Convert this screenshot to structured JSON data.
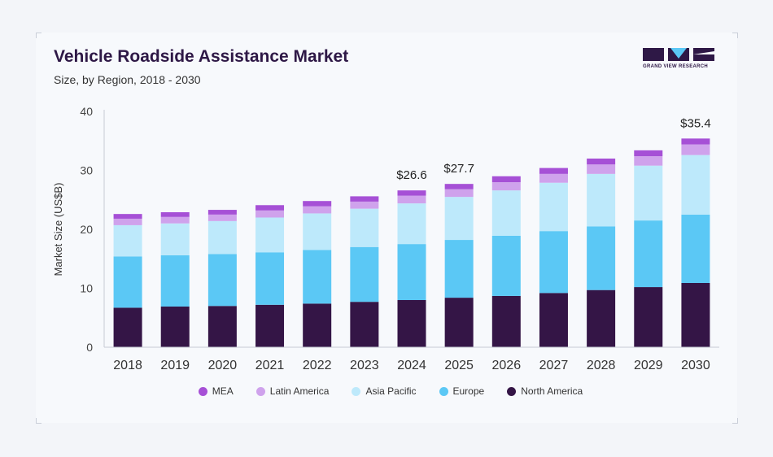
{
  "header": {
    "title": "Vehicle Roadside Assistance Market",
    "subtitle": "Size, by Region, 2018 - 2030"
  },
  "brand": {
    "logo_text": "GRAND VIEW RESEARCH",
    "color": "#2e1846",
    "accent": "#5bc8f5"
  },
  "chart_data": {
    "type": "bar",
    "stacked": true,
    "categories": [
      "2018",
      "2019",
      "2020",
      "2021",
      "2022",
      "2023",
      "2024",
      "2025",
      "2026",
      "2027",
      "2028",
      "2029",
      "2030"
    ],
    "series": [
      {
        "name": "North America",
        "color": "#341546",
        "values": [
          6.7,
          6.9,
          7.0,
          7.2,
          7.4,
          7.7,
          8.0,
          8.4,
          8.7,
          9.2,
          9.7,
          10.2,
          10.9
        ]
      },
      {
        "name": "Europe",
        "color": "#5bc8f5",
        "values": [
          8.7,
          8.7,
          8.8,
          8.9,
          9.1,
          9.3,
          9.5,
          9.8,
          10.2,
          10.5,
          10.8,
          11.3,
          11.6
        ]
      },
      {
        "name": "Asia Pacific",
        "color": "#bde9fb",
        "values": [
          5.3,
          5.4,
          5.6,
          5.9,
          6.2,
          6.5,
          6.9,
          7.3,
          7.7,
          8.2,
          8.9,
          9.3,
          10.1
        ]
      },
      {
        "name": "Latin America",
        "color": "#cfa2ec",
        "values": [
          1.1,
          1.1,
          1.1,
          1.2,
          1.2,
          1.2,
          1.3,
          1.3,
          1.4,
          1.5,
          1.6,
          1.6,
          1.8
        ]
      },
      {
        "name": "MEA",
        "color": "#a650d6",
        "values": [
          0.8,
          0.8,
          0.8,
          0.9,
          0.9,
          0.9,
          0.9,
          0.9,
          1.0,
          1.0,
          1.0,
          1.0,
          1.0
        ]
      }
    ],
    "legend_order": [
      "MEA",
      "Latin America",
      "Asia Pacific",
      "Europe",
      "North America"
    ],
    "annotations": [
      {
        "category": "2024",
        "label": "$26.6"
      },
      {
        "category": "2025",
        "label": "$27.7"
      },
      {
        "category": "2030",
        "label": "$35.4"
      }
    ],
    "ylabel": "Market Size (US$B)",
    "xlabel": "",
    "ylim": [
      0,
      40
    ],
    "yticks": [
      0,
      10,
      20,
      30,
      40
    ],
    "grid": false,
    "legend_position": "bottom"
  }
}
